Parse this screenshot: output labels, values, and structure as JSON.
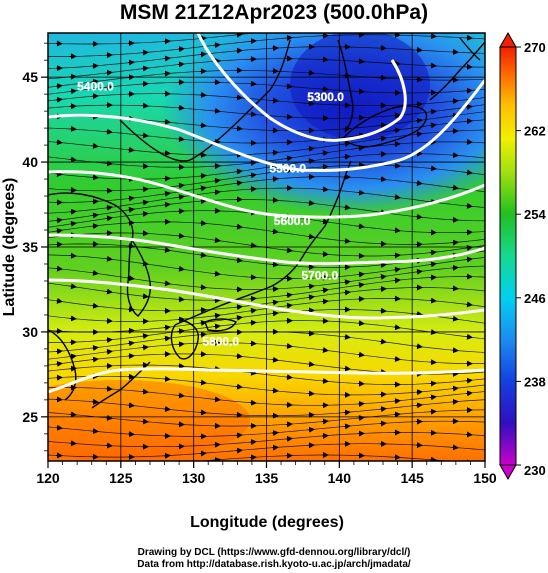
{
  "title": "MSM 21Z12Apr2023 (500.0hPa)",
  "x_axis": {
    "label": "Longitude (degrees)",
    "range": [
      120,
      150
    ],
    "ticks": [
      "120",
      "125",
      "130",
      "135",
      "140",
      "145",
      "150"
    ]
  },
  "y_axis": {
    "label": "Latitude  (degrees)",
    "range": [
      22.4,
      47.6
    ],
    "ticks": [
      "25",
      "30",
      "35",
      "40",
      "45"
    ]
  },
  "colorbar": {
    "range": [
      230,
      270
    ],
    "ticks": [
      "230",
      "238",
      "246",
      "254",
      "262",
      "270"
    ],
    "colors": [
      "#cc00cc",
      "#1010c8",
      "#2a6ef0",
      "#00c8f0",
      "#18e0a0",
      "#20c820",
      "#90e010",
      "#f0f000",
      "#ffc000",
      "#ff7000",
      "#f02000"
    ]
  },
  "contours": [
    {
      "label": "5300.0",
      "label_lon": 137.8,
      "label_lat": 43.6
    },
    {
      "label": "5400.0",
      "label_lon": 122.0,
      "label_lat": 44.2
    },
    {
      "label": "5500.0",
      "label_lon": 135.2,
      "label_lat": 39.4
    },
    {
      "label": "5600.0",
      "label_lon": 135.5,
      "label_lat": 36.3
    },
    {
      "label": "5700.0",
      "label_lon": 137.4,
      "label_lat": 33.1
    },
    {
      "label": "5800.0",
      "label_lon": 130.6,
      "label_lat": 29.2
    }
  ],
  "colors": {
    "contour": "#ffffff",
    "streamline": "#000000",
    "coast": "#000000"
  },
  "credits": [
    "Drawing by DCL (https://www.gfd-dennou.org/library/dcl/)",
    "Data from http://database.rish.kyoto-u.ac.jp/arch/jmadata/"
  ]
}
